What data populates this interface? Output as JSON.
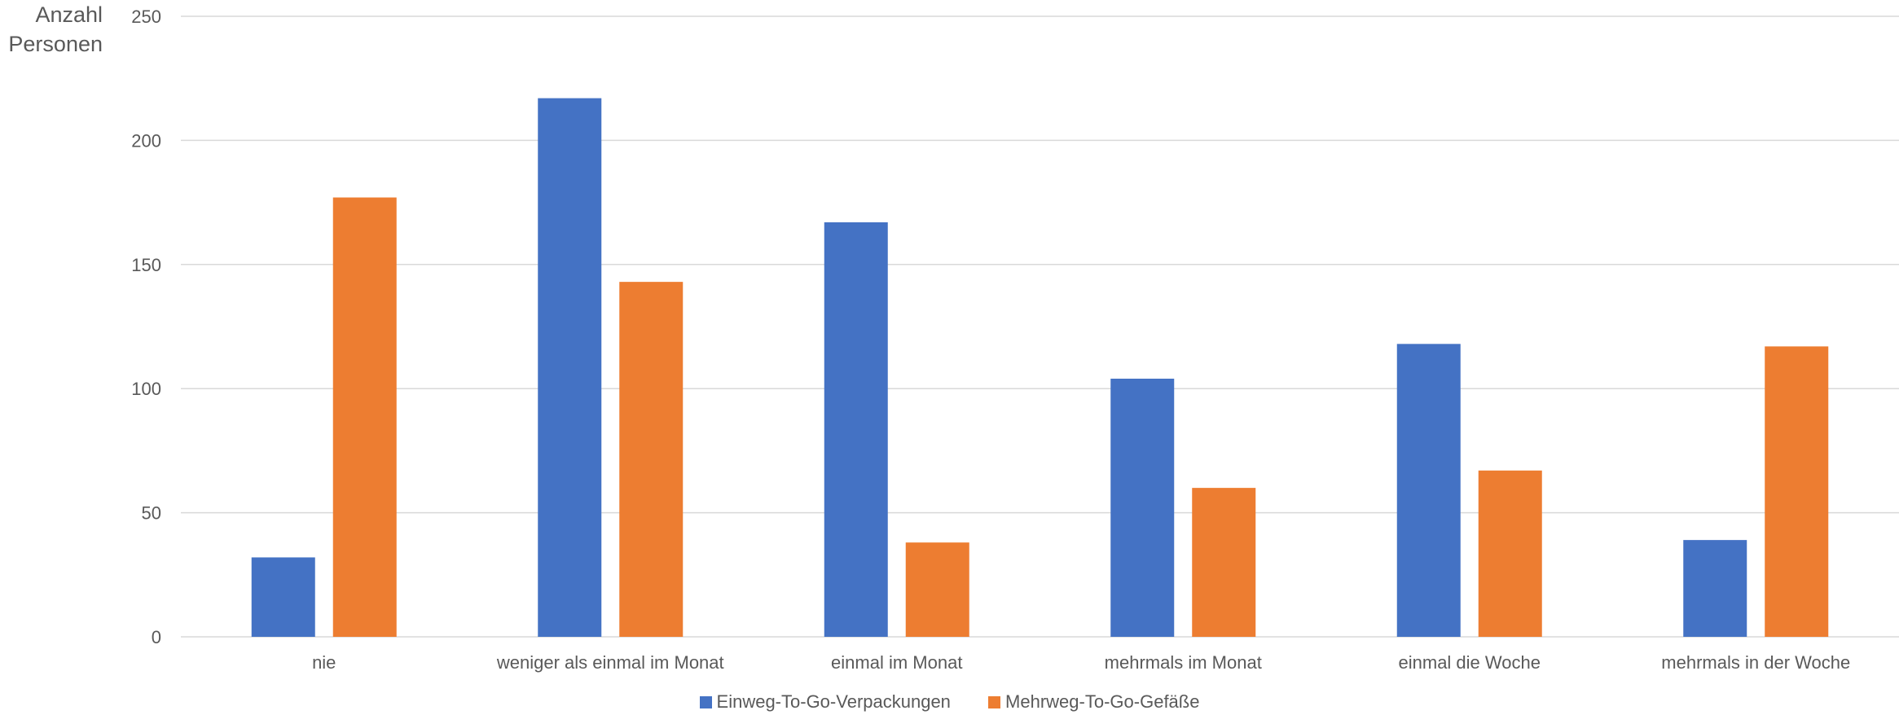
{
  "chart_data": {
    "type": "bar",
    "title": "",
    "xlabel": "",
    "ylabel_lines": [
      "Anzahl",
      "Personen"
    ],
    "categories": [
      "nie",
      "weniger als einmal im Monat",
      "einmal im Monat",
      "mehrmals im Monat",
      "einmal die Woche",
      "mehrmals in der Woche"
    ],
    "series": [
      {
        "name": "Einweg-To-Go-Verpackungen",
        "color": "#4472C4",
        "values": [
          32,
          217,
          167,
          104,
          118,
          39
        ]
      },
      {
        "name": "Mehrweg-To-Go-Gefäße",
        "color": "#ED7D31",
        "values": [
          177,
          143,
          38,
          60,
          67,
          117
        ]
      }
    ],
    "ylim": [
      0,
      250
    ],
    "yticks": [
      0,
      50,
      100,
      150,
      200,
      250
    ],
    "grid": true,
    "legend_position": "bottom"
  }
}
